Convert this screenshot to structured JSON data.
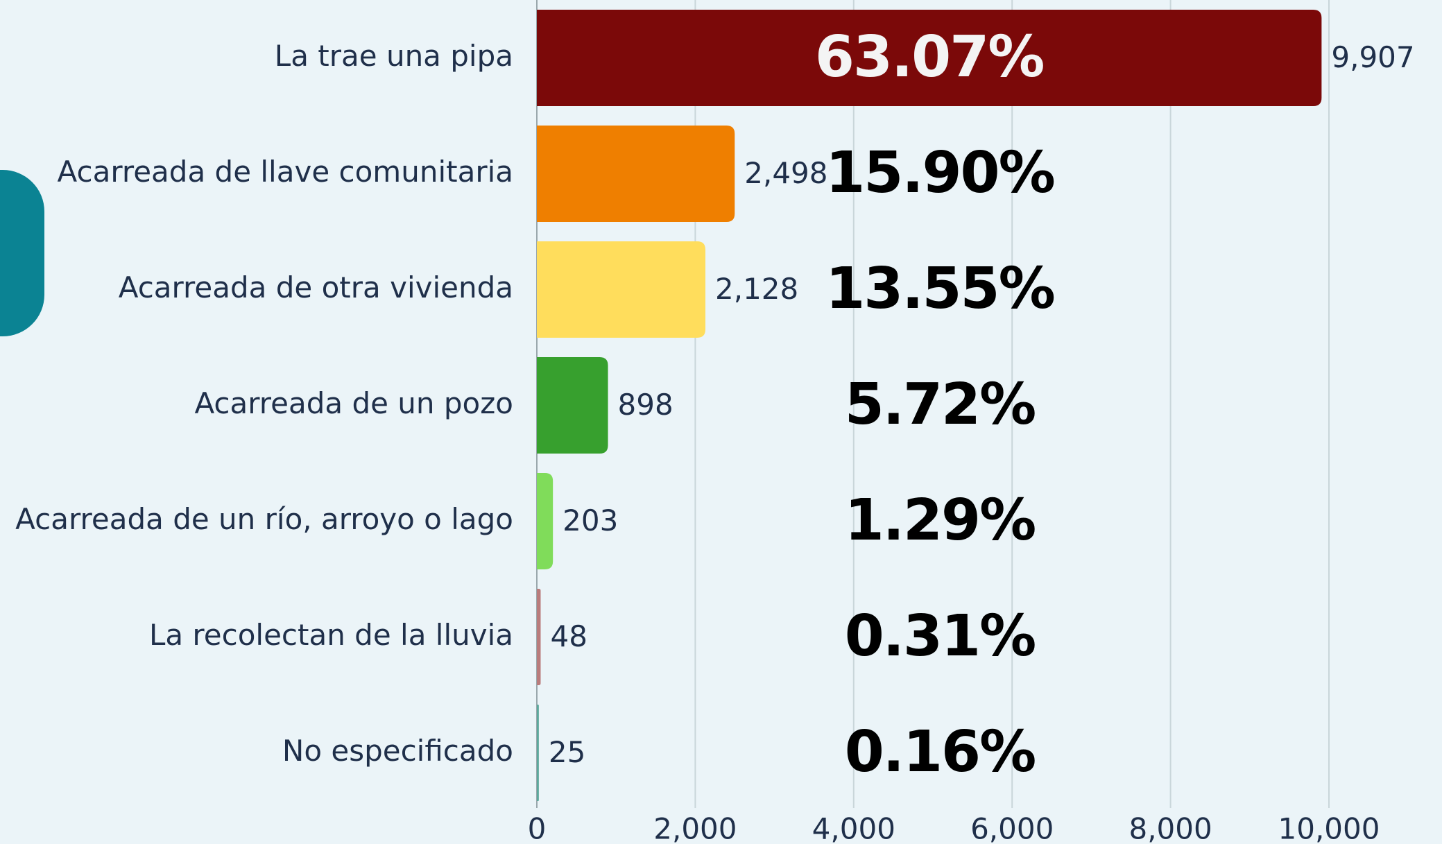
{
  "chart_data": {
    "type": "bar",
    "orientation": "horizontal",
    "categories": [
      "La trae una pipa",
      "Acarreada de llave comunitaria",
      "Acarreada de otra vivienda",
      "Acarreada de un pozo",
      "Acarreada de un río, arroyo o lago",
      "La recolectan de la lluvia",
      "No especificado"
    ],
    "values": [
      9907,
      2498,
      2128,
      898,
      203,
      48,
      25
    ],
    "value_labels": [
      "9,907",
      "2,498",
      "2,128",
      "898",
      "203",
      "48",
      "25"
    ],
    "percent_labels": [
      "63.07%",
      "15.90%",
      "13.55%",
      "5.72%",
      "1.29%",
      "0.31%",
      "0.16%"
    ],
    "colors": [
      "#7b0909",
      "#ef7f00",
      "#ffdd5c",
      "#37a02e",
      "#80dc5a",
      "#b97c7c",
      "#5ca89c"
    ],
    "xlim": [
      0,
      10000
    ],
    "xticks": [
      0,
      {
        "value": 2000,
        "label": "2,000"
      },
      {
        "value": 4000,
        "label": "4,000"
      },
      {
        "value": 6000,
        "label": "6,000"
      },
      {
        "value": 8000,
        "label": "8,000"
      },
      {
        "value": 10000,
        "label": "10,000"
      }
    ],
    "grid": true
  }
}
